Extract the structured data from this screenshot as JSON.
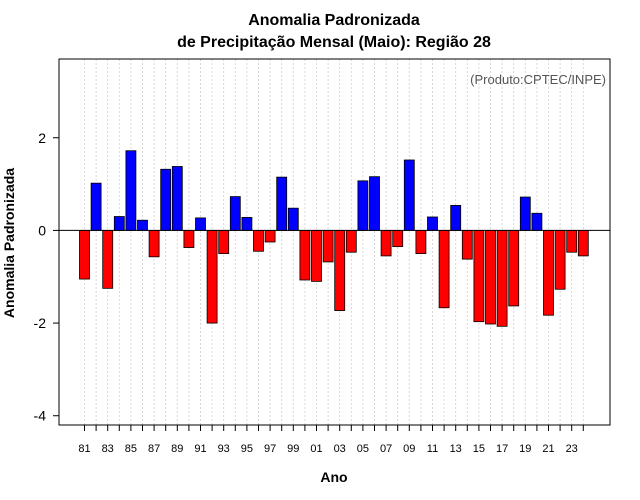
{
  "chart_data": {
    "type": "bar",
    "title_line1": "Anomalia Padronizada",
    "title_line2": "de Precipitação Mensal (Maio): Região 28",
    "xlabel": "Ano",
    "ylabel": "Anomalia Padronizada",
    "credit": "(Produto:CPTEC/INPE)",
    "ylim": [
      -4.2,
      3.7
    ],
    "yticks": [
      -4,
      -2,
      0,
      2
    ],
    "ytick_labels": [
      "-4",
      "-2",
      "0",
      "2"
    ],
    "categories": [
      "81",
      "82",
      "83",
      "84",
      "85",
      "86",
      "87",
      "88",
      "89",
      "90",
      "91",
      "92",
      "93",
      "94",
      "95",
      "96",
      "97",
      "98",
      "99",
      "00",
      "01",
      "02",
      "03",
      "04",
      "05",
      "06",
      "07",
      "08",
      "09",
      "10",
      "11",
      "12",
      "13",
      "14",
      "15",
      "16",
      "17",
      "18",
      "19",
      "20",
      "21",
      "22",
      "23",
      "24"
    ],
    "xtick_labels": [
      "81",
      "83",
      "85",
      "87",
      "89",
      "91",
      "93",
      "95",
      "97",
      "99",
      "01",
      "03",
      "05",
      "07",
      "09",
      "11",
      "13",
      "15",
      "17",
      "19",
      "21",
      "23"
    ],
    "values": [
      -1.05,
      1.02,
      -1.25,
      0.3,
      1.72,
      0.22,
      -0.57,
      1.32,
      1.38,
      -0.37,
      0.27,
      -2.0,
      -0.5,
      0.73,
      0.28,
      -0.45,
      -0.25,
      1.15,
      0.48,
      -1.07,
      -1.1,
      -0.68,
      -1.73,
      -0.47,
      1.07,
      1.16,
      -0.55,
      -0.35,
      1.52,
      -0.5,
      0.29,
      -1.67,
      0.54,
      -0.62,
      -1.97,
      -2.02,
      -2.07,
      -1.63,
      0.72,
      0.37,
      -1.83,
      -1.27,
      -0.47,
      -0.55
    ],
    "positive_color": "#0000ff",
    "negative_color": "#ff0000"
  }
}
